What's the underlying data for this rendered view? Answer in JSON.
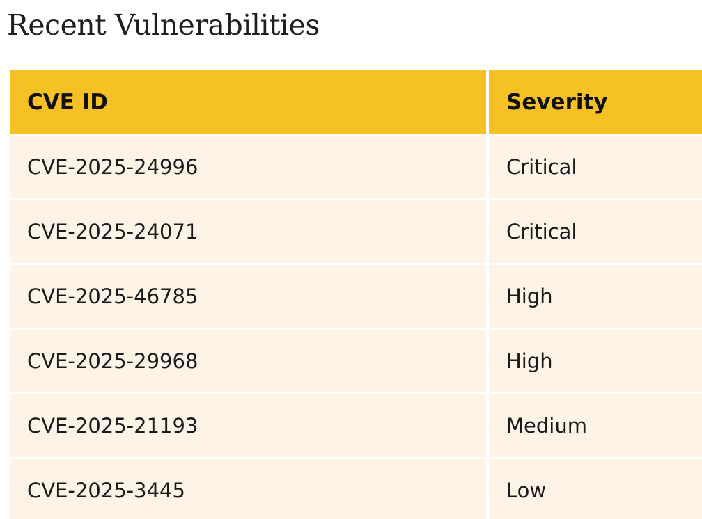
{
  "page": {
    "title": "Recent Vulnerabilities"
  },
  "table": {
    "columns": [
      "CVE ID",
      "Severity"
    ],
    "rows": [
      {
        "cve_id": "CVE-2025-24996",
        "severity": "Critical"
      },
      {
        "cve_id": "CVE-2025-24071",
        "severity": "Critical"
      },
      {
        "cve_id": "CVE-2025-46785",
        "severity": "High"
      },
      {
        "cve_id": "CVE-2025-29968",
        "severity": "High"
      },
      {
        "cve_id": "CVE-2025-21193",
        "severity": "Medium"
      },
      {
        "cve_id": "CVE-2025-3445",
        "severity": "Low"
      }
    ]
  },
  "colors": {
    "header_background": "#f5c125",
    "row_background": "#fdf3e6",
    "text": "#1a1a1a"
  }
}
